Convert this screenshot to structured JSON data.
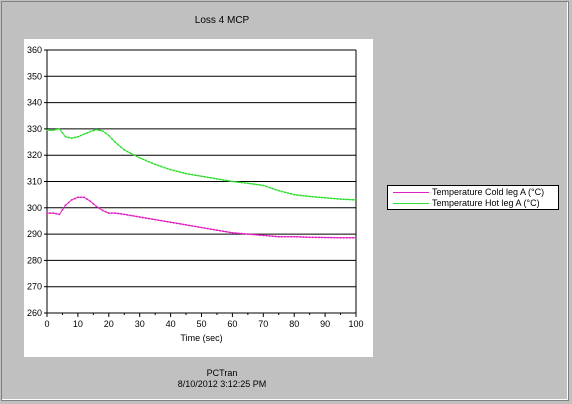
{
  "window": {
    "title": "Loss 4 MCP"
  },
  "footer": {
    "app": "PCTran",
    "timestamp": "8/10/2012 3:12:25 PM"
  },
  "chart_data": {
    "type": "line",
    "title": "Loss 4 MCP",
    "xlabel": "Time (sec)",
    "ylabel": "",
    "xlim": [
      0,
      100
    ],
    "ylim": [
      260,
      360
    ],
    "xticks": [
      0,
      10,
      20,
      30,
      40,
      50,
      60,
      70,
      80,
      90,
      100
    ],
    "yticks": [
      260,
      270,
      280,
      290,
      300,
      310,
      320,
      330,
      340,
      350,
      360
    ],
    "grid": "horizontal",
    "legend_position": "right",
    "series": [
      {
        "name": "Temperature Cold leg A (°C)",
        "color": "#e020c0",
        "x": [
          0,
          2,
          4,
          6,
          8,
          10,
          12,
          14,
          16,
          18,
          20,
          22,
          25,
          30,
          35,
          40,
          45,
          50,
          55,
          60,
          65,
          70,
          75,
          80,
          85,
          90,
          95,
          100
        ],
        "y": [
          298,
          298,
          297.5,
          301,
          303,
          304,
          304,
          302.5,
          300.5,
          299,
          298,
          298,
          297.5,
          296.5,
          295.5,
          294.5,
          293.5,
          292.5,
          291.5,
          290.5,
          290,
          289.5,
          289,
          289,
          288.8,
          288.7,
          288.6,
          288.6
        ]
      },
      {
        "name": "Temperature Hot leg A (°C)",
        "color": "#30dd30",
        "x": [
          0,
          2,
          4,
          6,
          8,
          10,
          12,
          14,
          16,
          18,
          20,
          22,
          25,
          30,
          35,
          40,
          45,
          50,
          55,
          60,
          65,
          70,
          75,
          80,
          85,
          90,
          95,
          100
        ],
        "y": [
          329.5,
          329.5,
          330,
          327,
          326.5,
          327,
          328,
          329,
          329.7,
          329.2,
          327.5,
          325,
          322,
          319,
          316.5,
          314.5,
          313,
          312,
          311,
          310,
          309.3,
          308.5,
          306.5,
          305,
          304.3,
          303.8,
          303.3,
          303
        ]
      }
    ]
  }
}
